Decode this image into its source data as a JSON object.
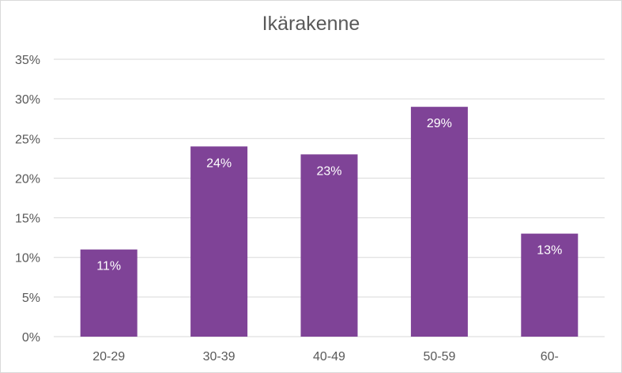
{
  "chart_data": {
    "type": "bar",
    "title": "Ikärakenne",
    "categories": [
      "20-29",
      "30-39",
      "40-49",
      "50-59",
      "60-"
    ],
    "values": [
      11,
      24,
      23,
      29,
      13
    ],
    "data_labels": [
      "11%",
      "24%",
      "23%",
      "29%",
      "13%"
    ],
    "ylim": [
      0,
      35
    ],
    "y_ticks": [
      "0%",
      "5%",
      "10%",
      "15%",
      "20%",
      "25%",
      "30%",
      "35%"
    ],
    "xlabel": "",
    "ylabel": "",
    "grid": true,
    "legend": "none",
    "bar_color": "#7f4397",
    "grid_color": "#d9d9d9",
    "text_color": "#595959"
  }
}
